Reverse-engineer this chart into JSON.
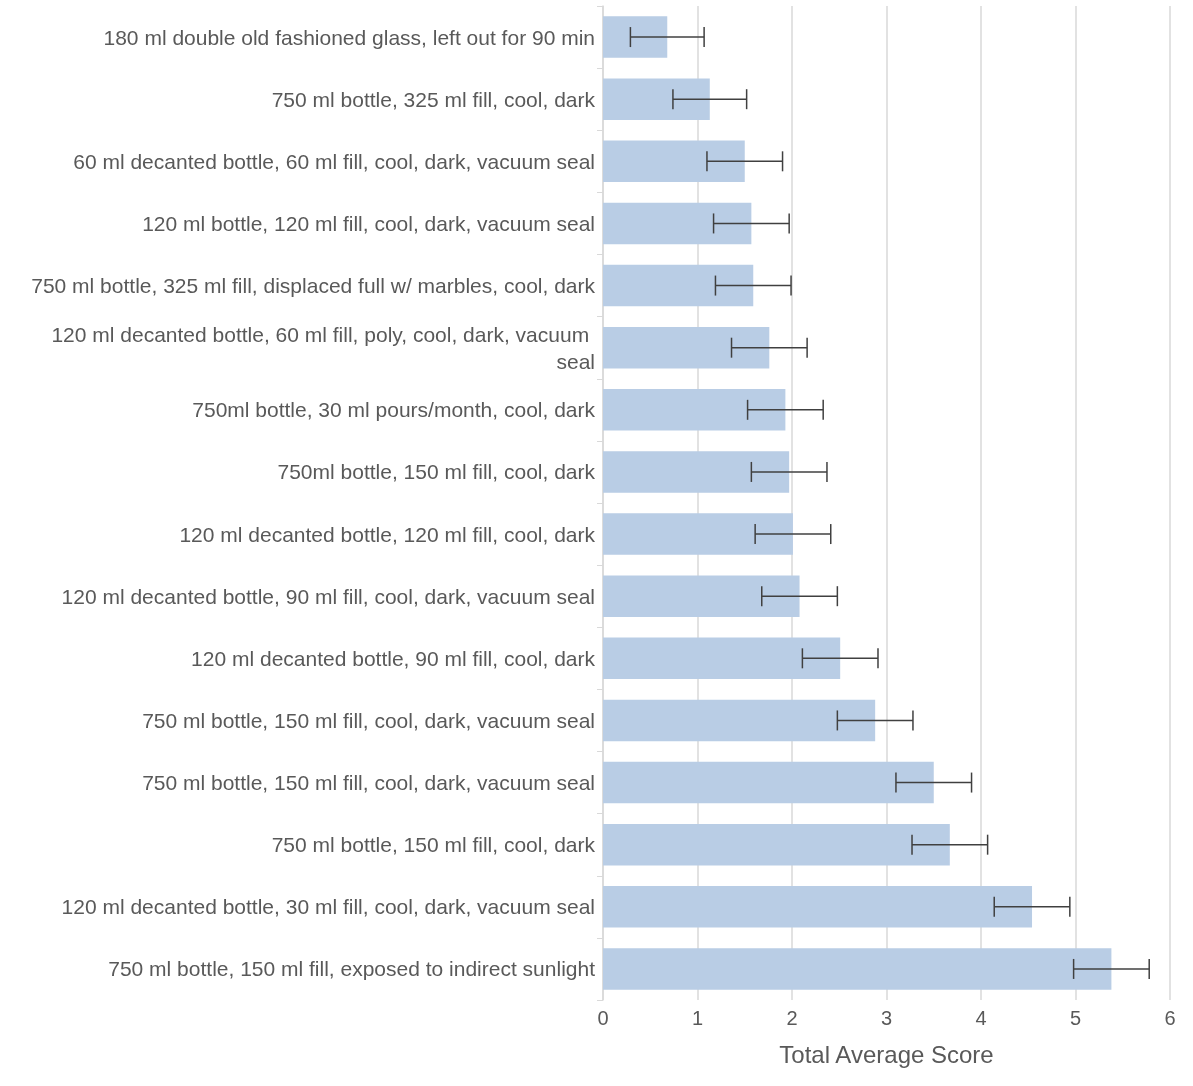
{
  "chart_data": {
    "type": "bar",
    "orientation": "horizontal",
    "xlabel": "Total Average Score",
    "categories": [
      "180 ml double old fashioned glass, left out for 90 min",
      "750 ml bottle, 325 ml fill, cool, dark",
      "60 ml decanted bottle, 60 ml fill, cool, dark, vacuum seal",
      "120 ml bottle, 120 ml fill, cool, dark, vacuum seal",
      "750 ml bottle, 325 ml fill, displaced full w/ marbles, cool, dark",
      "120 ml decanted bottle, 60 ml fill, poly, cool, dark, vacuum seal",
      "750ml bottle, 30 ml pours/month, cool, dark",
      "750ml bottle, 150 ml fill, cool, dark",
      "120 ml decanted bottle, 120 ml fill, cool, dark",
      "120 ml decanted bottle, 90 ml fill, cool, dark, vacuum seal",
      "120 ml decanted bottle, 90 ml fill, cool, dark",
      "750 ml bottle, 150 ml fill, cool, dark, vacuum seal",
      "750 ml bottle, 150 ml fill, cool, dark, vacuum seal",
      "750 ml bottle, 150 ml fill, cool, dark",
      "120 ml decanted bottle, 30 ml fill, cool, dark, vacuum seal",
      "750 ml bottle, 150 ml fill, exposed to indirect sunlight"
    ],
    "values": [
      0.68,
      1.13,
      1.5,
      1.57,
      1.59,
      1.76,
      1.93,
      1.97,
      2.01,
      2.08,
      2.51,
      2.88,
      3.5,
      3.67,
      4.54,
      5.38
    ],
    "errors": [
      0.39,
      0.39,
      0.4,
      0.4,
      0.4,
      0.4,
      0.4,
      0.4,
      0.4,
      0.4,
      0.4,
      0.4,
      0.4,
      0.4,
      0.4,
      0.4
    ],
    "color": "#b9cde5",
    "xlim": [
      0,
      6
    ],
    "xticks": [
      0,
      1,
      2,
      3,
      4,
      5,
      6
    ],
    "grid": "x"
  }
}
